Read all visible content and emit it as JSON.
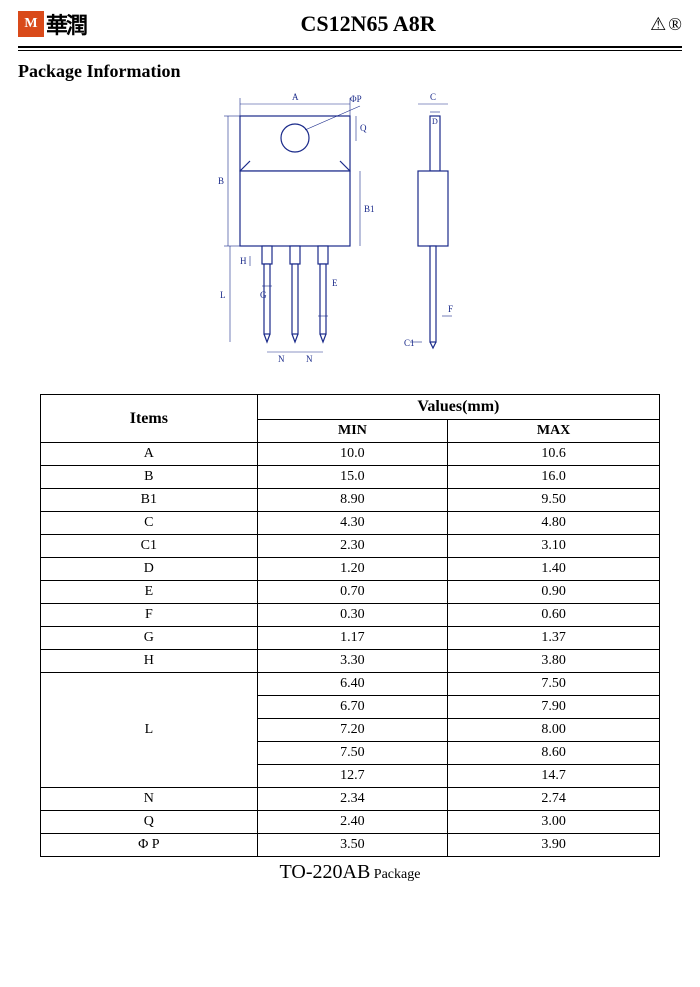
{
  "header": {
    "logo_mark": "M",
    "logo_cn": "華潤",
    "part_number": "CS12N65 A8R",
    "right_mark1": "⚠",
    "right_mark2": "®"
  },
  "section_title": "Package Information",
  "diagram": {
    "labels": {
      "A": "A",
      "B": "B",
      "B1": "B1",
      "C": "C",
      "C1": "C1",
      "D": "D",
      "E": "E",
      "F": "F",
      "G": "G",
      "H": "H",
      "L": "L",
      "N": "N",
      "Q": "Q",
      "phiP": "ΦP"
    },
    "colors": {
      "stroke": "#1a2a8a",
      "fill": "#ffffff",
      "thin": "#1a2a8a"
    }
  },
  "table": {
    "head_items": "Items",
    "head_values": "Values(mm)",
    "head_min": "MIN",
    "head_max": "MAX",
    "rows_simple": [
      {
        "item": "A",
        "min": "10.0",
        "max": "10.6"
      },
      {
        "item": "B",
        "min": "15.0",
        "max": "16.0"
      },
      {
        "item": "B1",
        "min": "8.90",
        "max": "9.50"
      },
      {
        "item": "C",
        "min": "4.30",
        "max": "4.80"
      },
      {
        "item": "C1",
        "min": "2.30",
        "max": "3.10"
      },
      {
        "item": "D",
        "min": "1.20",
        "max": "1.40"
      },
      {
        "item": "E",
        "min": "0.70",
        "max": "0.90"
      },
      {
        "item": "F",
        "min": "0.30",
        "max": "0.60"
      },
      {
        "item": "G",
        "min": "1.17",
        "max": "1.37"
      },
      {
        "item": "H",
        "min": "3.30",
        "max": "3.80"
      }
    ],
    "L_group": {
      "item": "L",
      "pairs": [
        {
          "min": "6.40",
          "max": "7.50"
        },
        {
          "min": "6.70",
          "max": "7.90"
        },
        {
          "min": "7.20",
          "max": "8.00"
        },
        {
          "min": "7.50",
          "max": "8.60"
        },
        {
          "min": "12.7",
          "max": "14.7"
        }
      ]
    },
    "rows_after": [
      {
        "item": "N",
        "min": "2.34",
        "max": "2.74"
      },
      {
        "item": "Q",
        "min": "2.40",
        "max": "3.00"
      },
      {
        "item": "Φ P",
        "min": "3.50",
        "max": "3.90"
      }
    ]
  },
  "caption_main": "TO-220AB",
  "caption_small": " Package"
}
